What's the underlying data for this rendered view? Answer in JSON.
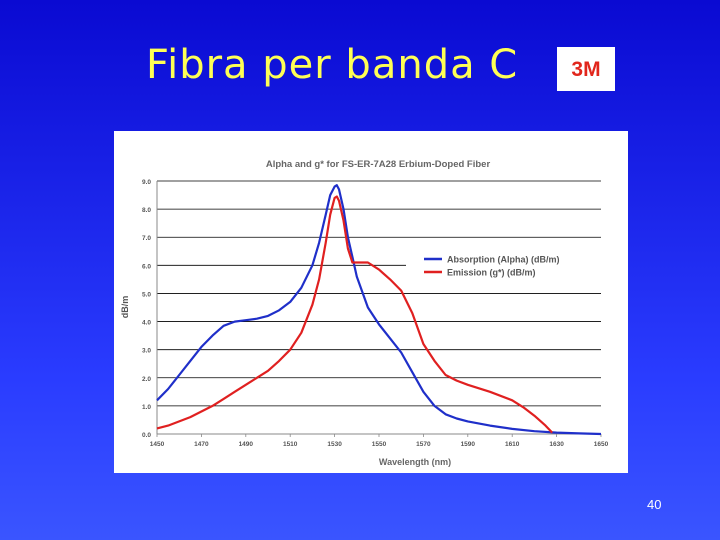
{
  "slide": {
    "title": "Fibra per banda C",
    "page_number": "40"
  },
  "logo": {
    "text": "3M",
    "color": "#e1261c"
  },
  "chart_data": {
    "type": "line",
    "title": "Alpha and g* for FS-ER-7A28 Erbium-Doped Fiber",
    "xlabel": "Wavelength (nm)",
    "ylabel": "dB/m",
    "xlim": [
      1450,
      1650
    ],
    "ylim": [
      0,
      9
    ],
    "xticks": [
      1450,
      1470,
      1490,
      1510,
      1530,
      1550,
      1570,
      1590,
      1610,
      1630,
      1650
    ],
    "yticks": [
      "0.0",
      "1.0",
      "2.0",
      "3.0",
      "4.0",
      "5.0",
      "6.0",
      "7.0",
      "8.0",
      "9.0"
    ],
    "grid": "horizontal",
    "legend": "upper-right",
    "series": [
      {
        "name": "Absorption (Alpha) (dB/m)",
        "color": "#1f2fc9",
        "x": [
          1450,
          1455,
          1460,
          1465,
          1470,
          1475,
          1480,
          1485,
          1490,
          1495,
          1500,
          1505,
          1510,
          1515,
          1520,
          1523,
          1526,
          1528,
          1530,
          1531,
          1532,
          1534,
          1536,
          1538,
          1540,
          1545,
          1550,
          1555,
          1560,
          1565,
          1570,
          1575,
          1580,
          1585,
          1590,
          1600,
          1610,
          1620,
          1630,
          1640,
          1650
        ],
        "y": [
          1.2,
          1.6,
          2.1,
          2.6,
          3.1,
          3.5,
          3.85,
          4.0,
          4.05,
          4.1,
          4.2,
          4.4,
          4.7,
          5.2,
          6.0,
          6.8,
          7.8,
          8.5,
          8.8,
          8.85,
          8.7,
          8.0,
          7.0,
          6.3,
          5.6,
          4.5,
          3.9,
          3.4,
          2.9,
          2.2,
          1.5,
          1.0,
          0.7,
          0.55,
          0.45,
          0.3,
          0.18,
          0.1,
          0.05,
          0.02,
          0.0
        ]
      },
      {
        "name": "Emission (g*) (dB/m)",
        "color": "#e02020",
        "x": [
          1450,
          1455,
          1460,
          1465,
          1470,
          1475,
          1480,
          1485,
          1490,
          1495,
          1500,
          1505,
          1510,
          1515,
          1520,
          1523,
          1526,
          1528,
          1530,
          1531,
          1532,
          1534,
          1536,
          1538,
          1540,
          1545,
          1550,
          1555,
          1560,
          1565,
          1570,
          1575,
          1580,
          1585,
          1590,
          1600,
          1610,
          1615,
          1620,
          1625,
          1628
        ],
        "y": [
          0.2,
          0.3,
          0.45,
          0.6,
          0.8,
          1.0,
          1.25,
          1.5,
          1.75,
          2.0,
          2.25,
          2.6,
          3.0,
          3.6,
          4.6,
          5.5,
          6.8,
          7.8,
          8.4,
          8.45,
          8.3,
          7.6,
          6.6,
          6.1,
          6.1,
          6.1,
          5.85,
          5.5,
          5.1,
          4.3,
          3.2,
          2.6,
          2.1,
          1.9,
          1.75,
          1.5,
          1.2,
          0.95,
          0.65,
          0.3,
          0.05
        ]
      }
    ]
  }
}
